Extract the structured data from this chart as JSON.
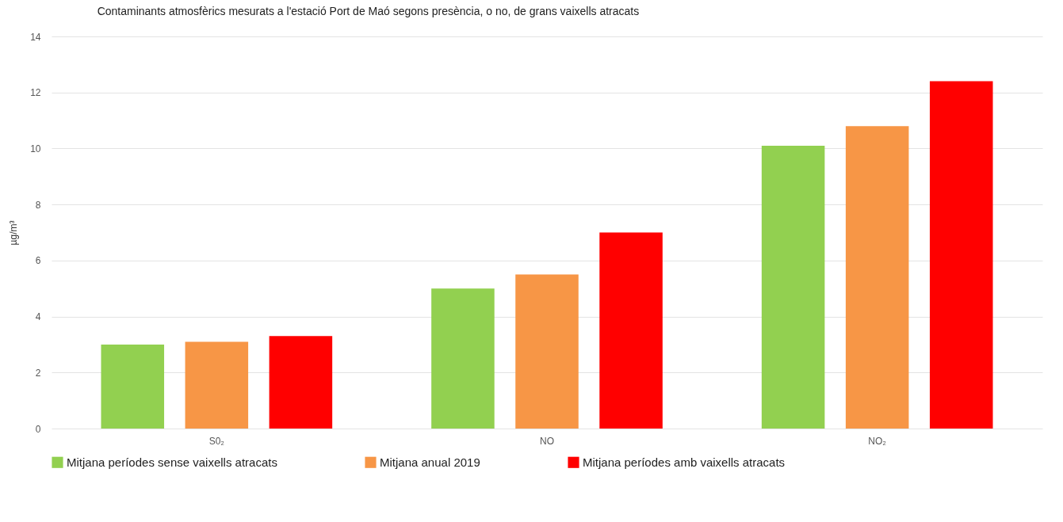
{
  "chart_data": {
    "type": "bar",
    "title": "Contaminants atmosfèrics mesurats a l'estació Port de Maó segons presència, o no, de grans vaixells atracats",
    "ylabel": "µg/m³",
    "categories": [
      "S0₂",
      "NO",
      "NO₂"
    ],
    "series": [
      {
        "name": "Mitjana períodes sense vaixells atracats",
        "color": "#92d050",
        "values": [
          3.0,
          5.0,
          10.1
        ]
      },
      {
        "name": "Mitjana anual 2019",
        "color": "#f79646",
        "values": [
          3.1,
          5.5,
          10.8
        ]
      },
      {
        "name": "Mitjana períodes amb vaixells atracats",
        "color": "#ff0000",
        "values": [
          3.3,
          7.0,
          12.4
        ]
      }
    ],
    "ylim": [
      0,
      14
    ],
    "yticks": [
      0,
      2,
      4,
      6,
      8,
      10,
      12,
      14
    ],
    "grid": "y",
    "legend": "bottom"
  }
}
